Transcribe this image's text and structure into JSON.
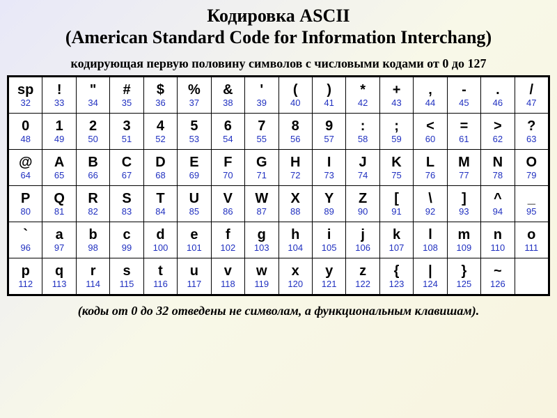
{
  "title_line1": "Кодировка ASCII",
  "title_line2_open": "(",
  "title_line2": "American Standard Code for Information Interchang",
  "title_line2_close": ")",
  "subtitle": "кодирующая первую половину символов с числовыми кодами от 0 до 127",
  "footnote": "(коды от 0 до 32 отведены не символам, а функциональным клавишам).",
  "table": {
    "columns": 16,
    "symbol_color": "#000000",
    "code_color": "#2030c0",
    "border_color": "#000000",
    "cell_bg": "#ffffff",
    "symbol_font": "Arial",
    "symbol_fontsize": 20,
    "code_fontsize": 13,
    "rows": [
      [
        {
          "sym": "sp",
          "code": "32"
        },
        {
          "sym": "!",
          "code": "33"
        },
        {
          "sym": "\"",
          "code": "34"
        },
        {
          "sym": "#",
          "code": "35"
        },
        {
          "sym": "$",
          "code": "36"
        },
        {
          "sym": "%",
          "code": "37"
        },
        {
          "sym": "&",
          "code": "38"
        },
        {
          "sym": "'",
          "code": "39"
        },
        {
          "sym": "(",
          "code": "40"
        },
        {
          "sym": ")",
          "code": "41"
        },
        {
          "sym": "*",
          "code": "42"
        },
        {
          "sym": "+",
          "code": "43"
        },
        {
          "sym": ",",
          "code": "44"
        },
        {
          "sym": "-",
          "code": "45"
        },
        {
          "sym": ".",
          "code": "46"
        },
        {
          "sym": "/",
          "code": "47"
        }
      ],
      [
        {
          "sym": "0",
          "code": "48"
        },
        {
          "sym": "1",
          "code": "49"
        },
        {
          "sym": "2",
          "code": "50"
        },
        {
          "sym": "3",
          "code": "51"
        },
        {
          "sym": "4",
          "code": "52"
        },
        {
          "sym": "5",
          "code": "53"
        },
        {
          "sym": "6",
          "code": "54"
        },
        {
          "sym": "7",
          "code": "55"
        },
        {
          "sym": "8",
          "code": "56"
        },
        {
          "sym": "9",
          "code": "57"
        },
        {
          "sym": ":",
          "code": "58"
        },
        {
          "sym": ";",
          "code": "59"
        },
        {
          "sym": "<",
          "code": "60"
        },
        {
          "sym": "=",
          "code": "61"
        },
        {
          "sym": ">",
          "code": "62"
        },
        {
          "sym": "?",
          "code": "63"
        }
      ],
      [
        {
          "sym": "@",
          "code": "64"
        },
        {
          "sym": "A",
          "code": "65"
        },
        {
          "sym": "B",
          "code": "66"
        },
        {
          "sym": "C",
          "code": "67"
        },
        {
          "sym": "D",
          "code": "68"
        },
        {
          "sym": "E",
          "code": "69"
        },
        {
          "sym": "F",
          "code": "70"
        },
        {
          "sym": "G",
          "code": "71"
        },
        {
          "sym": "H",
          "code": "72"
        },
        {
          "sym": "I",
          "code": "73"
        },
        {
          "sym": "J",
          "code": "74"
        },
        {
          "sym": "K",
          "code": "75"
        },
        {
          "sym": "L",
          "code": "76"
        },
        {
          "sym": "M",
          "code": "77"
        },
        {
          "sym": "N",
          "code": "78"
        },
        {
          "sym": "O",
          "code": "79"
        }
      ],
      [
        {
          "sym": "P",
          "code": "80"
        },
        {
          "sym": "Q",
          "code": "81"
        },
        {
          "sym": "R",
          "code": "82"
        },
        {
          "sym": "S",
          "code": "83"
        },
        {
          "sym": "T",
          "code": "84"
        },
        {
          "sym": "U",
          "code": "85"
        },
        {
          "sym": "V",
          "code": "86"
        },
        {
          "sym": "W",
          "code": "87"
        },
        {
          "sym": "X",
          "code": "88"
        },
        {
          "sym": "Y",
          "code": "89"
        },
        {
          "sym": "Z",
          "code": "90"
        },
        {
          "sym": "[",
          "code": "91"
        },
        {
          "sym": "\\",
          "code": "92"
        },
        {
          "sym": "]",
          "code": "93"
        },
        {
          "sym": "^",
          "code": "94"
        },
        {
          "sym": "_",
          "code": "95"
        }
      ],
      [
        {
          "sym": "`",
          "code": "96"
        },
        {
          "sym": "a",
          "code": "97"
        },
        {
          "sym": "b",
          "code": "98"
        },
        {
          "sym": "c",
          "code": "99"
        },
        {
          "sym": "d",
          "code": "100"
        },
        {
          "sym": "e",
          "code": "101"
        },
        {
          "sym": "f",
          "code": "102"
        },
        {
          "sym": "g",
          "code": "103"
        },
        {
          "sym": "h",
          "code": "104"
        },
        {
          "sym": "i",
          "code": "105"
        },
        {
          "sym": "j",
          "code": "106"
        },
        {
          "sym": "k",
          "code": "107"
        },
        {
          "sym": "l",
          "code": "108"
        },
        {
          "sym": "m",
          "code": "109"
        },
        {
          "sym": "n",
          "code": "110"
        },
        {
          "sym": "o",
          "code": "111"
        }
      ],
      [
        {
          "sym": "p",
          "code": "112"
        },
        {
          "sym": "q",
          "code": "113"
        },
        {
          "sym": "r",
          "code": "114"
        },
        {
          "sym": "s",
          "code": "115"
        },
        {
          "sym": "t",
          "code": "116"
        },
        {
          "sym": "u",
          "code": "117"
        },
        {
          "sym": "v",
          "code": "118"
        },
        {
          "sym": "w",
          "code": "119"
        },
        {
          "sym": "x",
          "code": "120"
        },
        {
          "sym": "y",
          "code": "121"
        },
        {
          "sym": "z",
          "code": "122"
        },
        {
          "sym": "{",
          "code": "123"
        },
        {
          "sym": "|",
          "code": "124"
        },
        {
          "sym": "}",
          "code": "125"
        },
        {
          "sym": "~",
          "code": "126"
        },
        {
          "sym": "",
          "code": ""
        }
      ]
    ]
  }
}
